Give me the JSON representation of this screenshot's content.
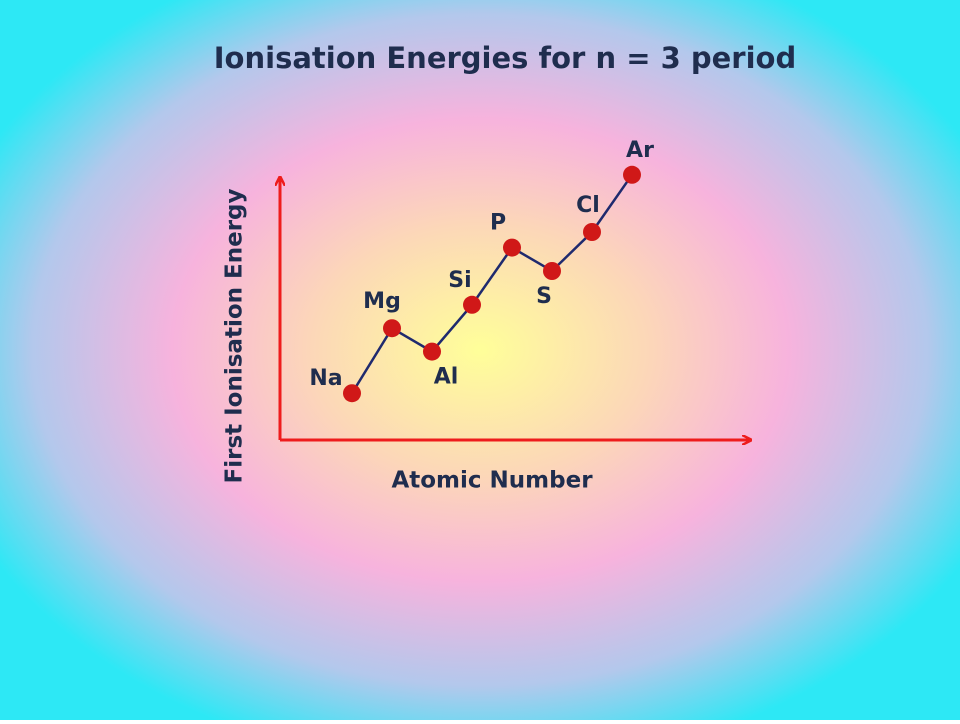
{
  "chart_data": {
    "type": "line",
    "title": "Ionisation Energies for n = 3 period",
    "x_label": "Atomic Number",
    "y_label": "First Ionisation Energy",
    "categories": [
      "Na",
      "Mg",
      "Al",
      "Si",
      "P",
      "S",
      "Cl",
      "Ar"
    ],
    "series": [
      {
        "values": [
          18,
          43,
          34,
          52,
          74,
          65,
          80,
          102
        ],
        "color": "#1f2a6e",
        "marker_color": "#d01818"
      }
    ],
    "ylim": [
      0,
      110
    ],
    "axis_color": "#ee1c1c"
  }
}
